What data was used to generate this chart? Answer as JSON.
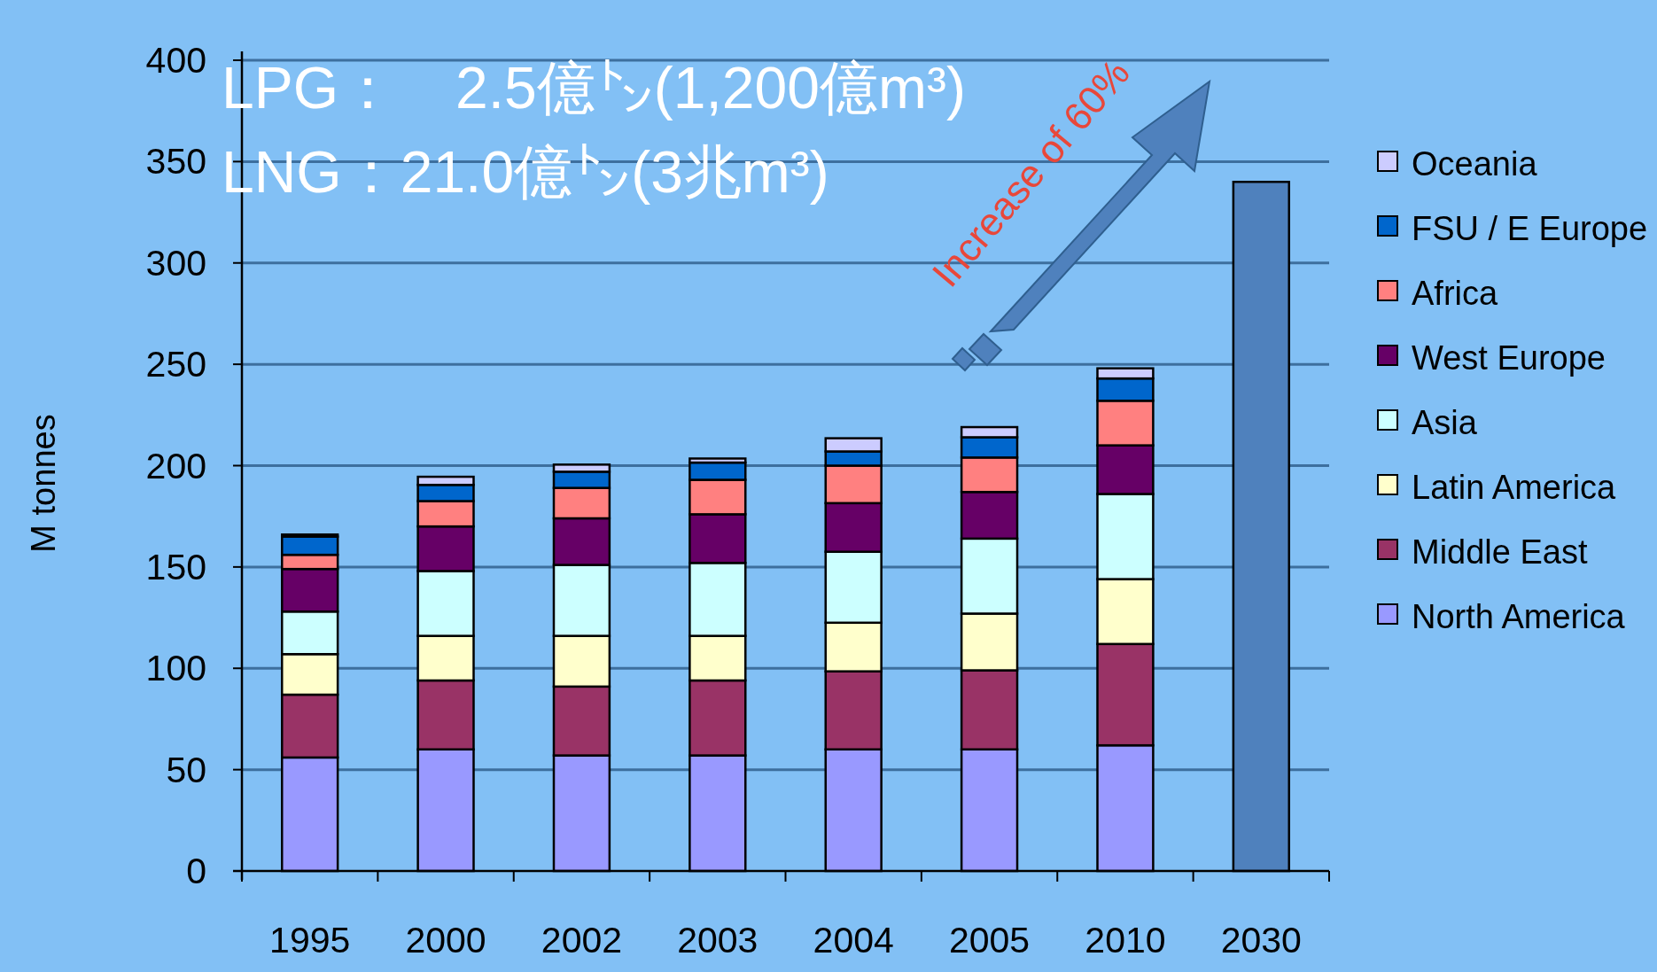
{
  "chart_data": {
    "type": "bar",
    "stacked": true,
    "ylabel": "M tonnes",
    "categories": [
      "1995",
      "2000",
      "2002",
      "2003",
      "2004",
      "2005",
      "2010",
      "2030"
    ],
    "series": [
      {
        "name": "North America",
        "color": "#9999ff",
        "values": [
          56,
          60,
          57,
          57,
          60,
          60,
          62,
          null
        ]
      },
      {
        "name": "Middle East",
        "color": "#993366",
        "values": [
          31,
          34,
          34,
          37,
          38.5,
          39,
          50,
          null
        ]
      },
      {
        "name": "Latin America",
        "color": "#ffffcc",
        "values": [
          20,
          22,
          25,
          22,
          24,
          28,
          32,
          null
        ]
      },
      {
        "name": "Asia",
        "color": "#ccffff",
        "values": [
          21,
          32,
          35,
          36,
          35,
          37,
          42,
          null
        ]
      },
      {
        "name": "West Europe",
        "color": "#660066",
        "values": [
          21,
          22,
          23,
          24,
          24,
          23,
          24,
          null
        ]
      },
      {
        "name": "Africa",
        "color": "#ff8080",
        "values": [
          7,
          12.5,
          15,
          17,
          18.5,
          17,
          22,
          null
        ]
      },
      {
        "name": "FSU / E Europe",
        "color": "#0066cc",
        "values": [
          9,
          8,
          8,
          8.5,
          7,
          10,
          11,
          null
        ]
      },
      {
        "name": "Oceania",
        "color": "#ccccff",
        "values": [
          1,
          4,
          3.5,
          2,
          6.5,
          5,
          5,
          null
        ]
      },
      {
        "color": "#4f81bd",
        "values": [
          null,
          null,
          null,
          null,
          null,
          null,
          null,
          340
        ]
      }
    ],
    "ylim": [
      0,
      400
    ],
    "yticks": [
      0,
      50,
      100,
      150,
      200,
      250,
      300,
      350,
      400
    ],
    "grid": "y",
    "legend": "right",
    "annotations": [
      "LPG：　2.5億㌧(1,200億m³)",
      "LNG：21.0億㌧(3兆m³)",
      "Increase of 60%"
    ]
  }
}
